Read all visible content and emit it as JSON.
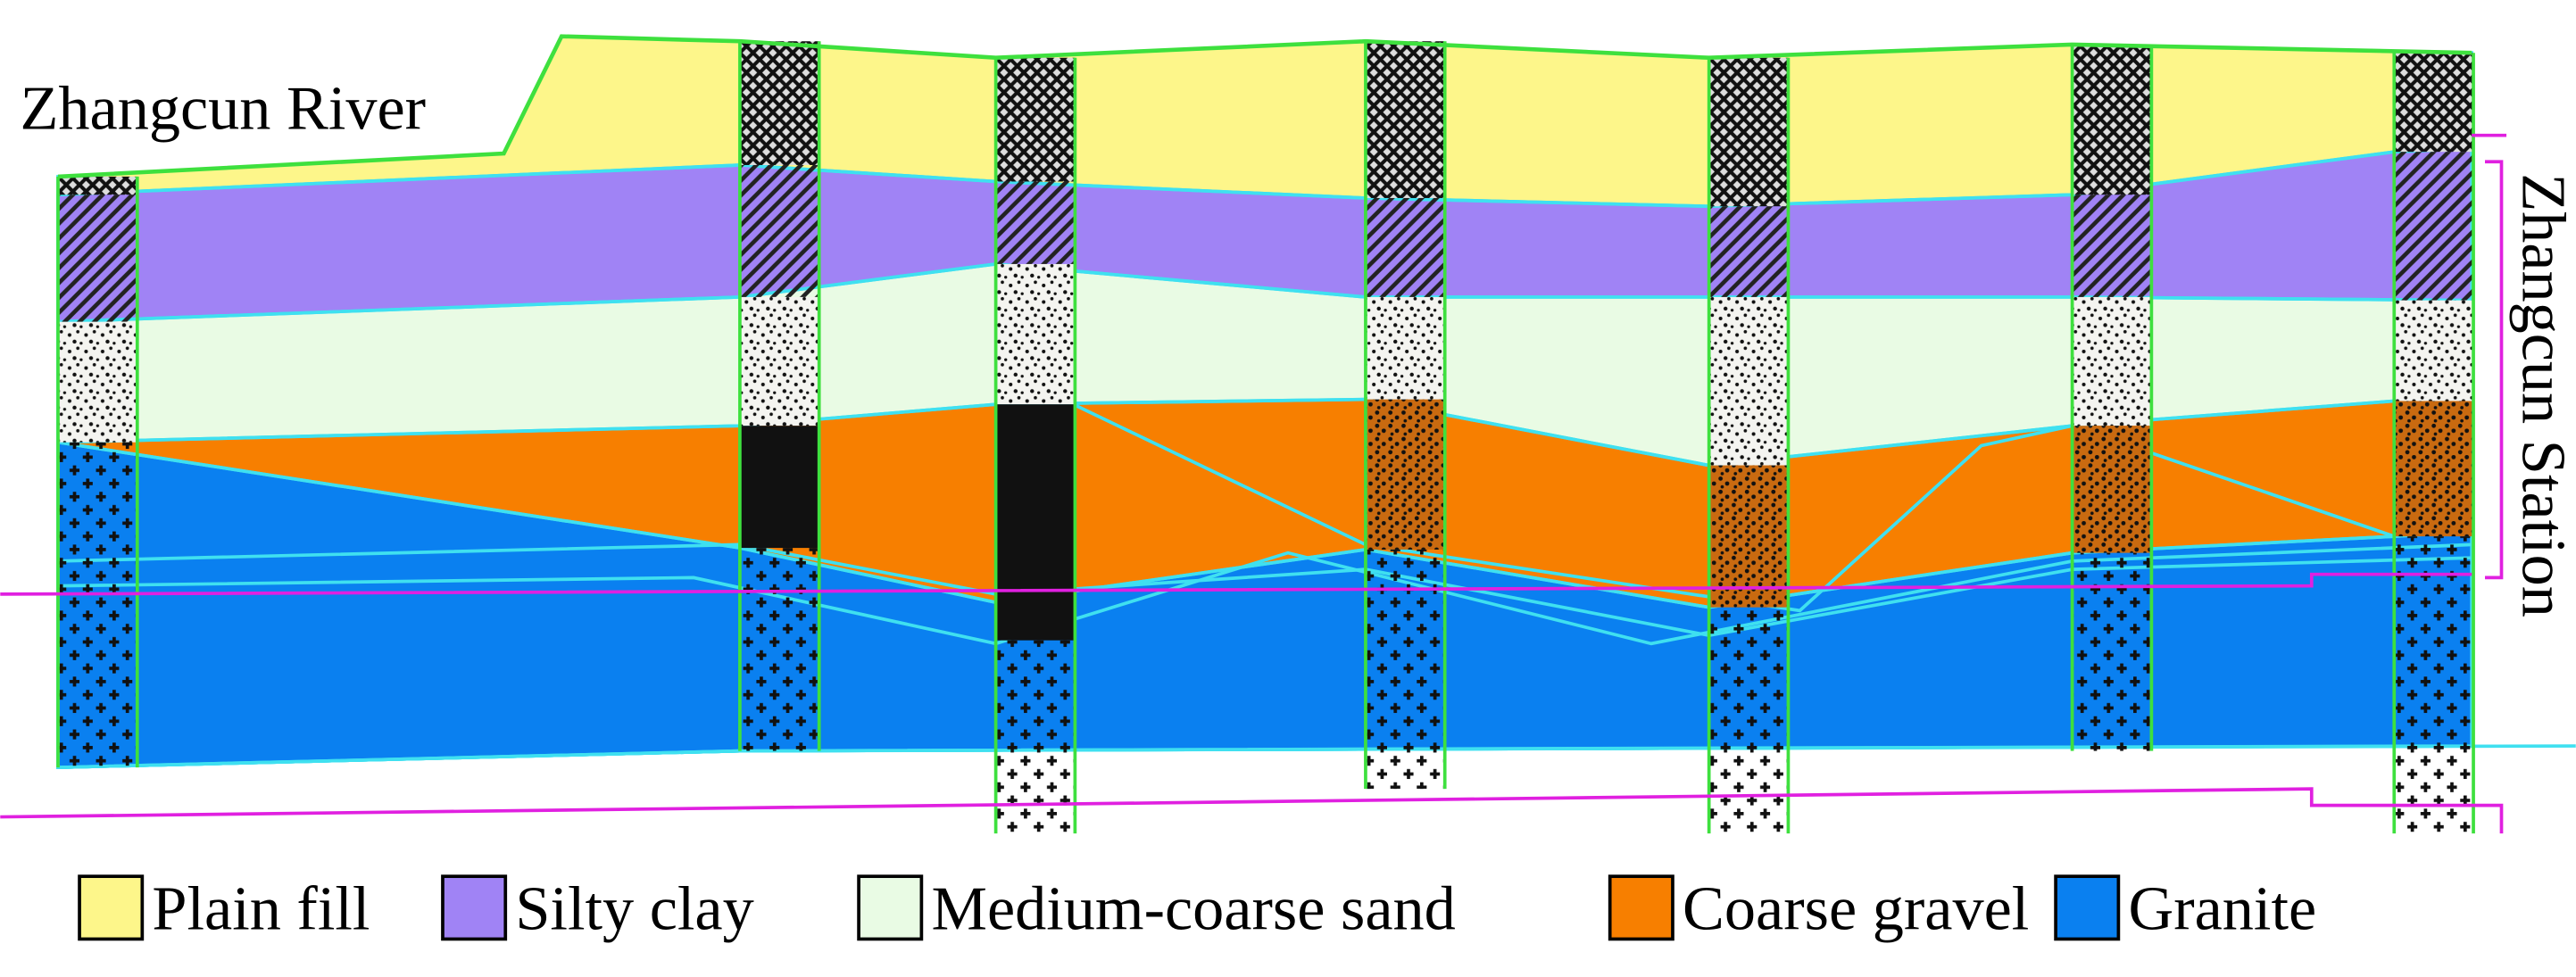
{
  "labels": {
    "river": "Zhangcun River",
    "station": "Zhangcun Station"
  },
  "legend": [
    {
      "name": "Plain fill",
      "color": "#fdf68a"
    },
    {
      "name": "Silty clay",
      "color": "#a083f5"
    },
    {
      "name": "Medium-coarse sand",
      "color": "#e9fbe4"
    },
    {
      "name": "Coarse gravel",
      "color": "#f77f00"
    },
    {
      "name": "Granite",
      "color": "#0a80f0"
    }
  ]
}
